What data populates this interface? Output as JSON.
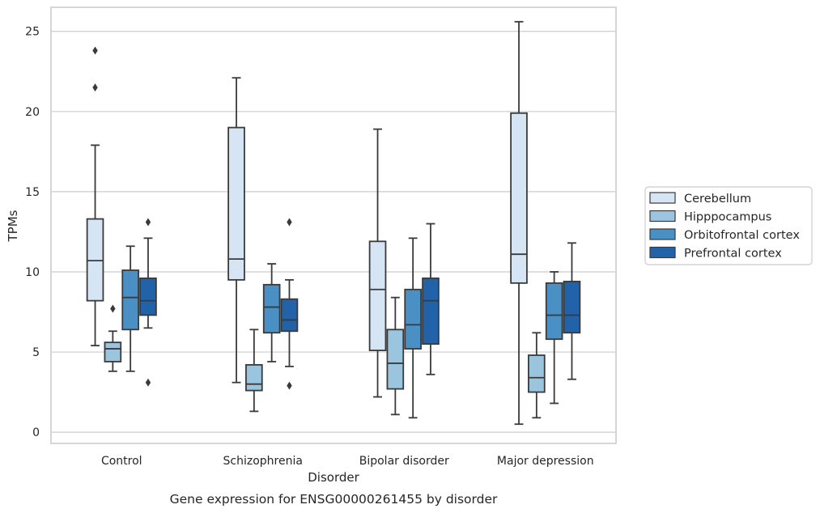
{
  "chart_data": {
    "type": "box",
    "title": "",
    "caption": "Gene expression for ENSG00000261455 by disorder",
    "xlabel": "Disorder",
    "ylabel": "TPMs",
    "ylim": [
      -0.7,
      26.5
    ],
    "yticks": [
      0,
      5,
      10,
      15,
      20,
      25
    ],
    "grid": true,
    "legend_position": "right",
    "categories": [
      "Control",
      "Schizophrenia",
      "Bipolar disorder",
      "Major depression"
    ],
    "series": [
      {
        "name": "Cerebellum",
        "color": "#d6e5f4",
        "boxes": [
          {
            "whislo": 5.4,
            "q1": 8.2,
            "med": 10.7,
            "q3": 13.3,
            "whishi": 17.9,
            "fliers": [
              21.5,
              23.8
            ]
          },
          {
            "whislo": 3.1,
            "q1": 9.5,
            "med": 10.8,
            "q3": 19.0,
            "whishi": 22.1,
            "fliers": []
          },
          {
            "whislo": 2.2,
            "q1": 5.1,
            "med": 8.9,
            "q3": 11.9,
            "whishi": 18.9,
            "fliers": []
          },
          {
            "whislo": 0.5,
            "q1": 9.3,
            "med": 11.1,
            "q3": 19.9,
            "whishi": 25.6,
            "fliers": []
          }
        ]
      },
      {
        "name": "Hipppocampus",
        "color": "#9bc4df",
        "boxes": [
          {
            "whislo": 3.8,
            "q1": 4.4,
            "med": 5.2,
            "q3": 5.6,
            "whishi": 6.3,
            "fliers": [
              7.7
            ]
          },
          {
            "whislo": 1.3,
            "q1": 2.6,
            "med": 3.0,
            "q3": 4.2,
            "whishi": 6.4,
            "fliers": []
          },
          {
            "whislo": 1.1,
            "q1": 2.7,
            "med": 4.3,
            "q3": 6.4,
            "whishi": 8.4,
            "fliers": []
          },
          {
            "whislo": 0.9,
            "q1": 2.5,
            "med": 3.4,
            "q3": 4.8,
            "whishi": 6.2,
            "fliers": []
          }
        ]
      },
      {
        "name": "Orbitofrontal cortex",
        "color": "#4b90c4",
        "boxes": [
          {
            "whislo": 3.8,
            "q1": 6.4,
            "med": 8.4,
            "q3": 10.1,
            "whishi": 11.6,
            "fliers": []
          },
          {
            "whislo": 4.4,
            "q1": 6.2,
            "med": 7.8,
            "q3": 9.2,
            "whishi": 10.5,
            "fliers": []
          },
          {
            "whislo": 0.9,
            "q1": 5.2,
            "med": 6.7,
            "q3": 8.9,
            "whishi": 12.1,
            "fliers": []
          },
          {
            "whislo": 1.8,
            "q1": 5.8,
            "med": 7.3,
            "q3": 9.3,
            "whishi": 10.0,
            "fliers": []
          }
        ]
      },
      {
        "name": "Prefrontal cortex",
        "color": "#2262a8",
        "boxes": [
          {
            "whislo": 6.5,
            "q1": 7.3,
            "med": 8.2,
            "q3": 9.6,
            "whishi": 12.1,
            "fliers": [
              3.1,
              13.1
            ]
          },
          {
            "whislo": 4.1,
            "q1": 6.3,
            "med": 7.0,
            "q3": 8.3,
            "whishi": 9.5,
            "fliers": [
              2.9,
              13.1
            ]
          },
          {
            "whislo": 3.6,
            "q1": 5.5,
            "med": 8.2,
            "q3": 9.6,
            "whishi": 13.0,
            "fliers": []
          },
          {
            "whislo": 3.3,
            "q1": 6.2,
            "med": 7.3,
            "q3": 9.4,
            "whishi": 11.8,
            "fliers": []
          }
        ]
      }
    ]
  }
}
